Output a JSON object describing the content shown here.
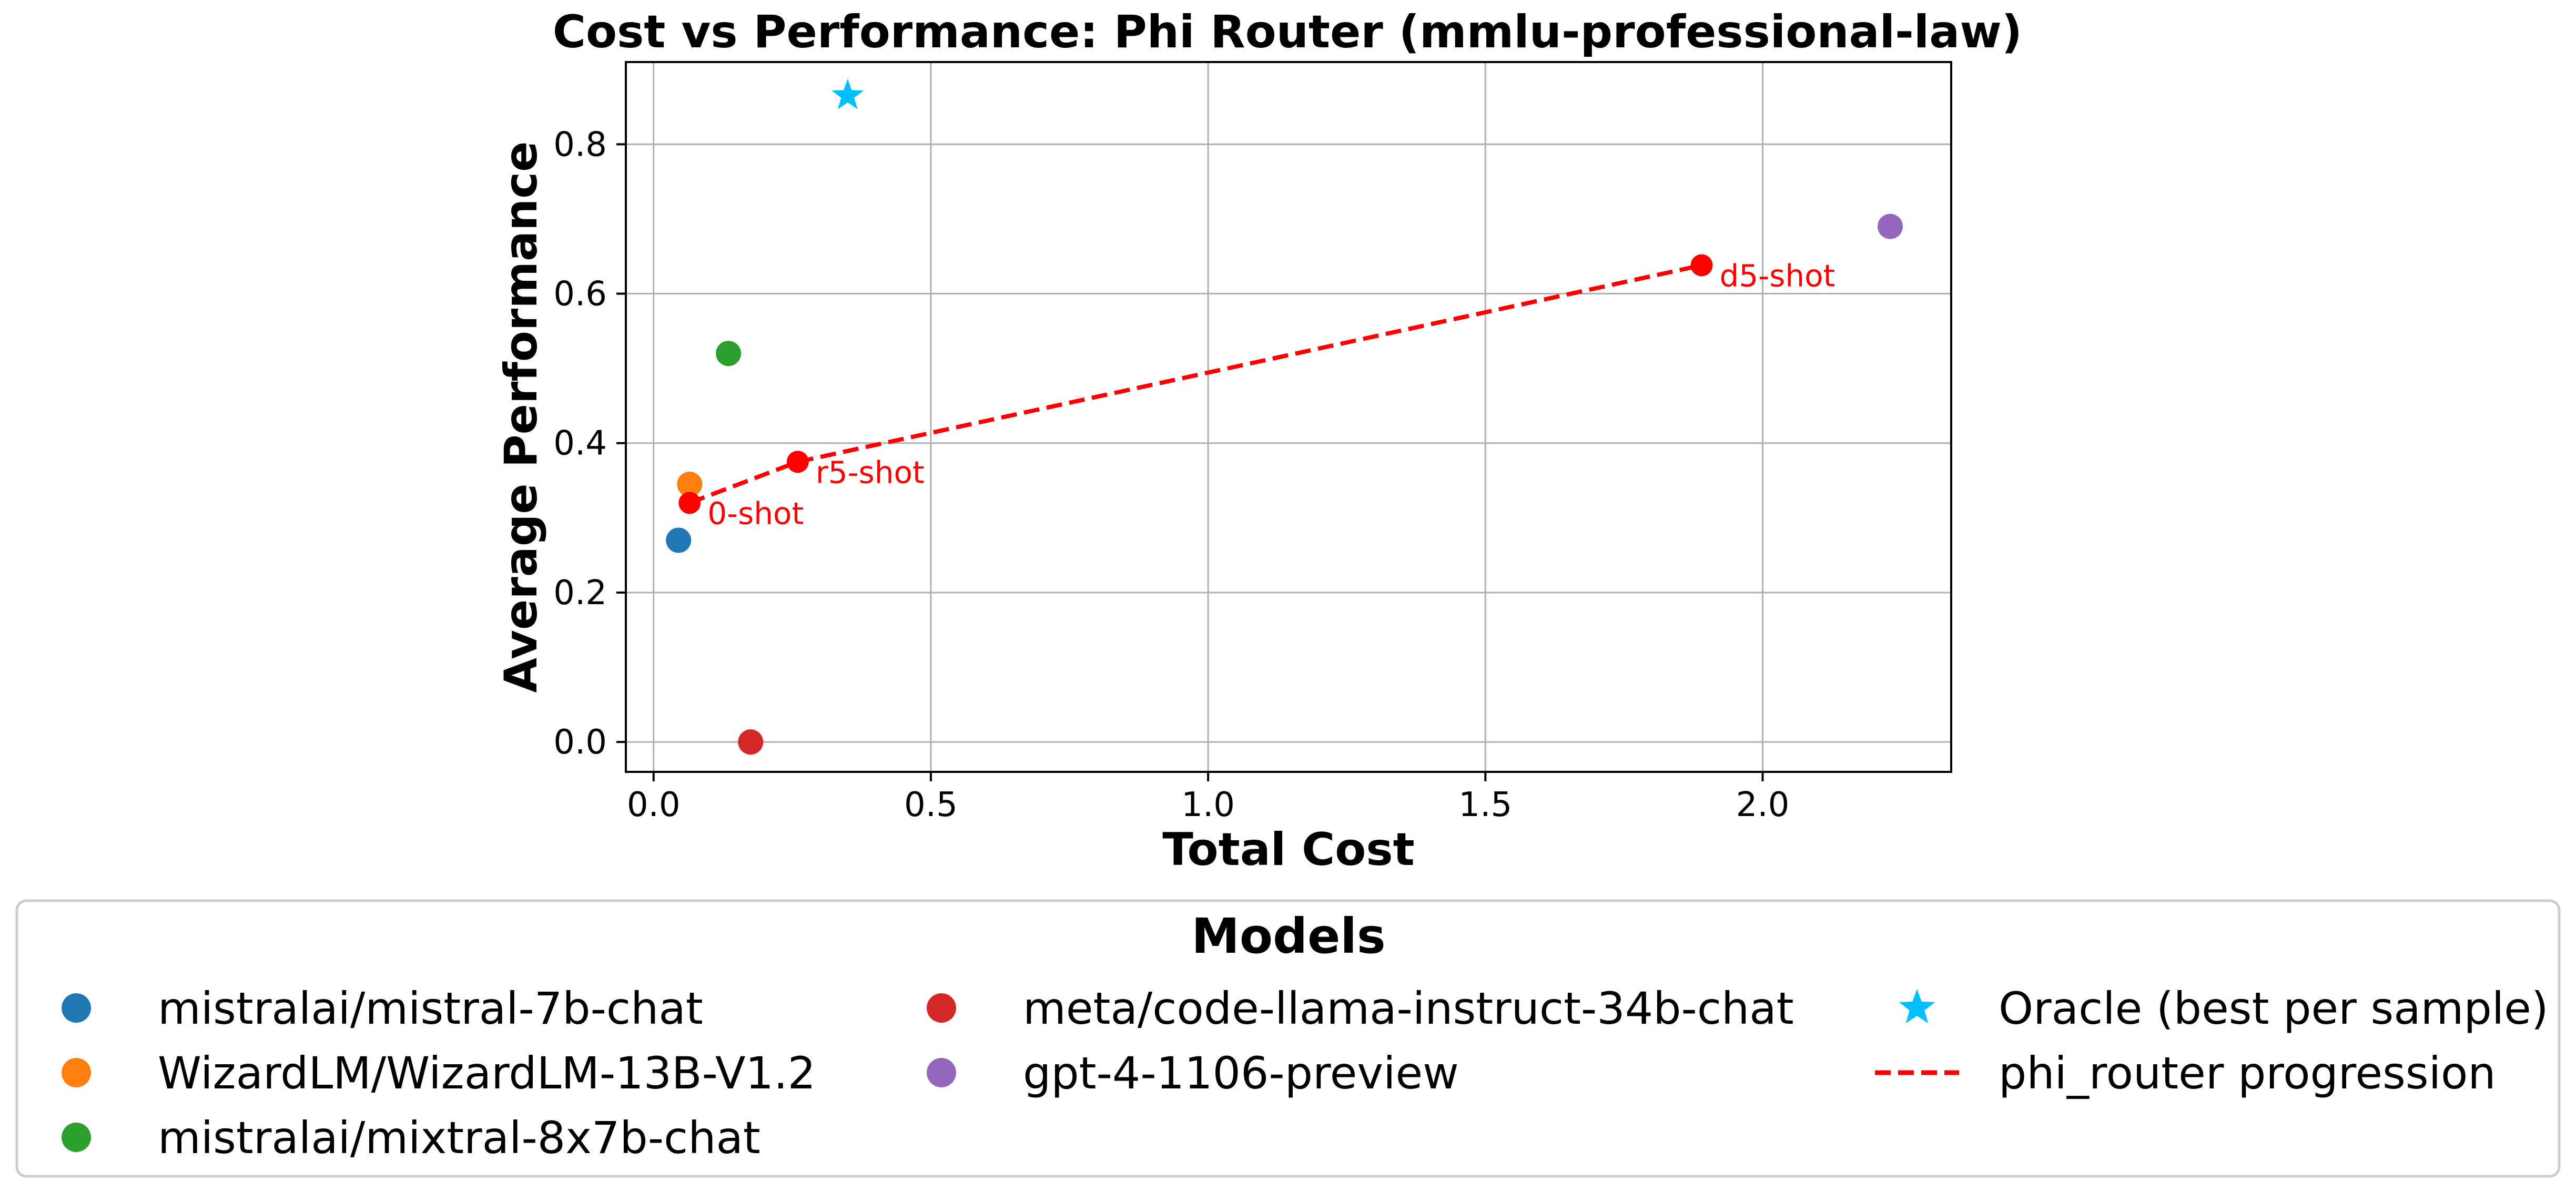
{
  "chart_data": {
    "type": "scatter",
    "title": "Cost vs Performance: Phi Router (mmlu-professional-law)",
    "xlabel": "Total Cost",
    "ylabel": "Average Performance",
    "xlim": [
      -0.05,
      2.34
    ],
    "ylim": [
      -0.04,
      0.91
    ],
    "xticks": [
      0.0,
      0.5,
      1.0,
      1.5,
      2.0
    ],
    "xtick_labels": [
      "0.0",
      "0.5",
      "1.0",
      "1.5",
      "2.0"
    ],
    "yticks": [
      0.0,
      0.2,
      0.4,
      0.6,
      0.8
    ],
    "ytick_labels": [
      "0.0",
      "0.2",
      "0.4",
      "0.6",
      "0.8"
    ],
    "grid": true,
    "legend": {
      "title": "Models",
      "placement": "below plot",
      "columns": 3
    },
    "series": [
      {
        "name": "mistralai/mistral-7b-chat",
        "marker": "circle",
        "color": "#1f77b4",
        "x": [
          0.045
        ],
        "y": [
          0.27
        ]
      },
      {
        "name": "WizardLM/WizardLM-13B-V1.2",
        "marker": "circle",
        "color": "#ff7f0e",
        "x": [
          0.065
        ],
        "y": [
          0.345
        ]
      },
      {
        "name": "mistralai/mixtral-8x7b-chat",
        "marker": "circle",
        "color": "#2ca02c",
        "x": [
          0.135
        ],
        "y": [
          0.52
        ]
      },
      {
        "name": "meta/code-llama-instruct-34b-chat",
        "marker": "circle",
        "color": "#d62728",
        "x": [
          0.175
        ],
        "y": [
          0.0
        ]
      },
      {
        "name": "gpt-4-1106-preview",
        "marker": "circle",
        "color": "#9467bd",
        "x": [
          2.23
        ],
        "y": [
          0.69
        ]
      },
      {
        "name": "Oracle (best per sample)",
        "marker": "star",
        "color": "#00bfff",
        "x": [
          0.35
        ],
        "y": [
          0.865
        ]
      },
      {
        "name": "phi_router progression",
        "marker": "line-dashed",
        "color": "#ff0000",
        "x": [
          0.065,
          0.26,
          1.89
        ],
        "y": [
          0.32,
          0.375,
          0.638
        ],
        "point_labels": [
          "0-shot",
          "r5-shot",
          "d5-shot"
        ]
      }
    ]
  }
}
